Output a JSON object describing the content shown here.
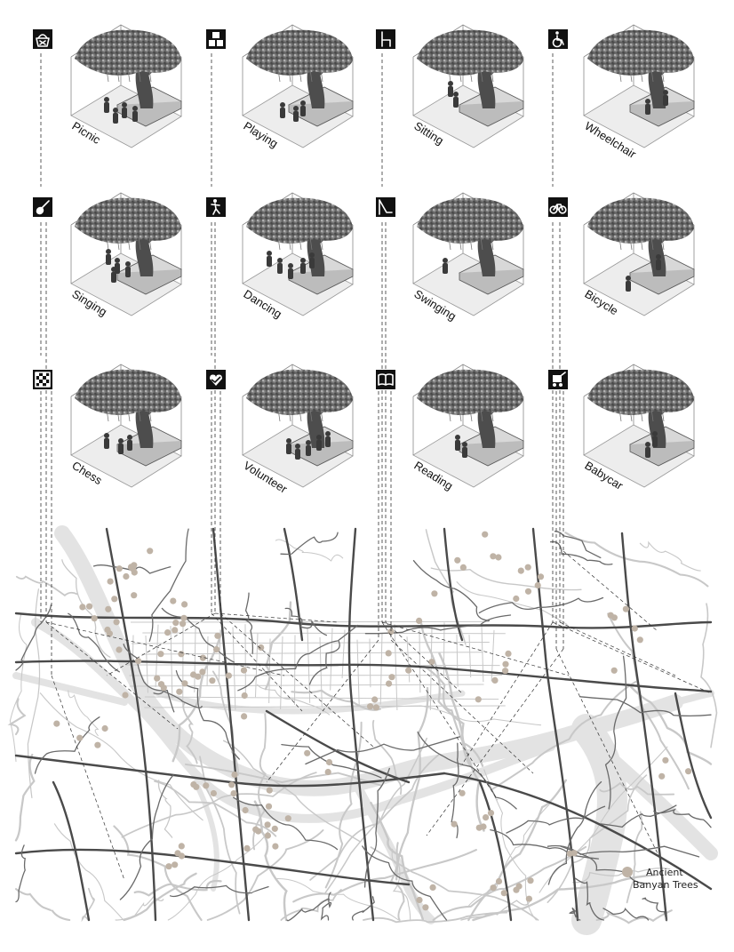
{
  "activities": [
    {
      "label": "Picnic",
      "icon": "picnic-basket-icon"
    },
    {
      "label": "Playing",
      "icon": "toy-blocks-icon"
    },
    {
      "label": "Sitting",
      "icon": "chair-icon"
    },
    {
      "label": "Wheelchair",
      "icon": "wheelchair-icon"
    },
    {
      "label": "Singing",
      "icon": "guitar-icon"
    },
    {
      "label": "Dancing",
      "icon": "dancer-icon"
    },
    {
      "label": "Swinging",
      "icon": "swing-icon"
    },
    {
      "label": "Bicycle",
      "icon": "bicycle-icon"
    },
    {
      "label": "Chess",
      "icon": "chessboard-icon"
    },
    {
      "label": "Volunteer",
      "icon": "heart-hands-icon"
    },
    {
      "label": "Reading",
      "icon": "open-book-icon"
    },
    {
      "label": "Babycar",
      "icon": "stroller-icon"
    }
  ],
  "legend": {
    "line1": "Ancient",
    "line2": "Banyan Trees",
    "marker_color": "#bfb3a6"
  },
  "colors": {
    "icon_bg": "#111111",
    "road_dark": "#4a4a4a",
    "road_light": "#c8c8c8",
    "river": "#e3e3e3",
    "tree_dot": "#bfb3a6",
    "leader_line": "#333333"
  }
}
